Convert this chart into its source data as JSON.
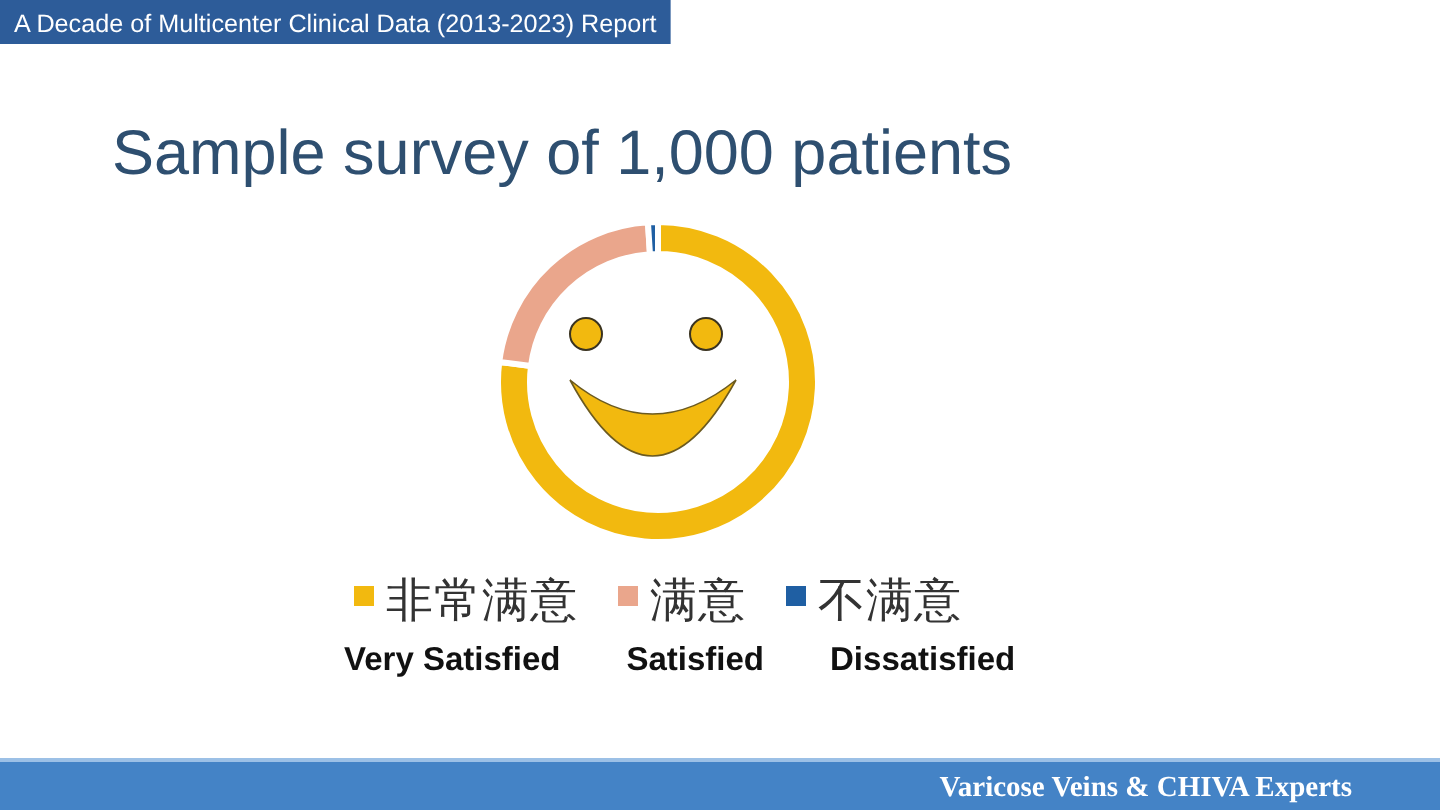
{
  "chart_data": {
    "type": "donut",
    "title": "Sample survey of 1,000 patients",
    "categories": [
      "非常满意",
      "满意",
      "不满意"
    ],
    "values": [
      77,
      22,
      1
    ],
    "colors": [
      "#f2b90f",
      "#eaa68c",
      "#1f5fa3"
    ],
    "legend": "bottom",
    "annotations": [
      "A Decade of Multicenter Clinical Data (2013-2023) Report",
      "Very Satisfied",
      "Satisfied",
      "Dissatisfied",
      "Varicose Veins & CHIVA Experts"
    ]
  }
}
